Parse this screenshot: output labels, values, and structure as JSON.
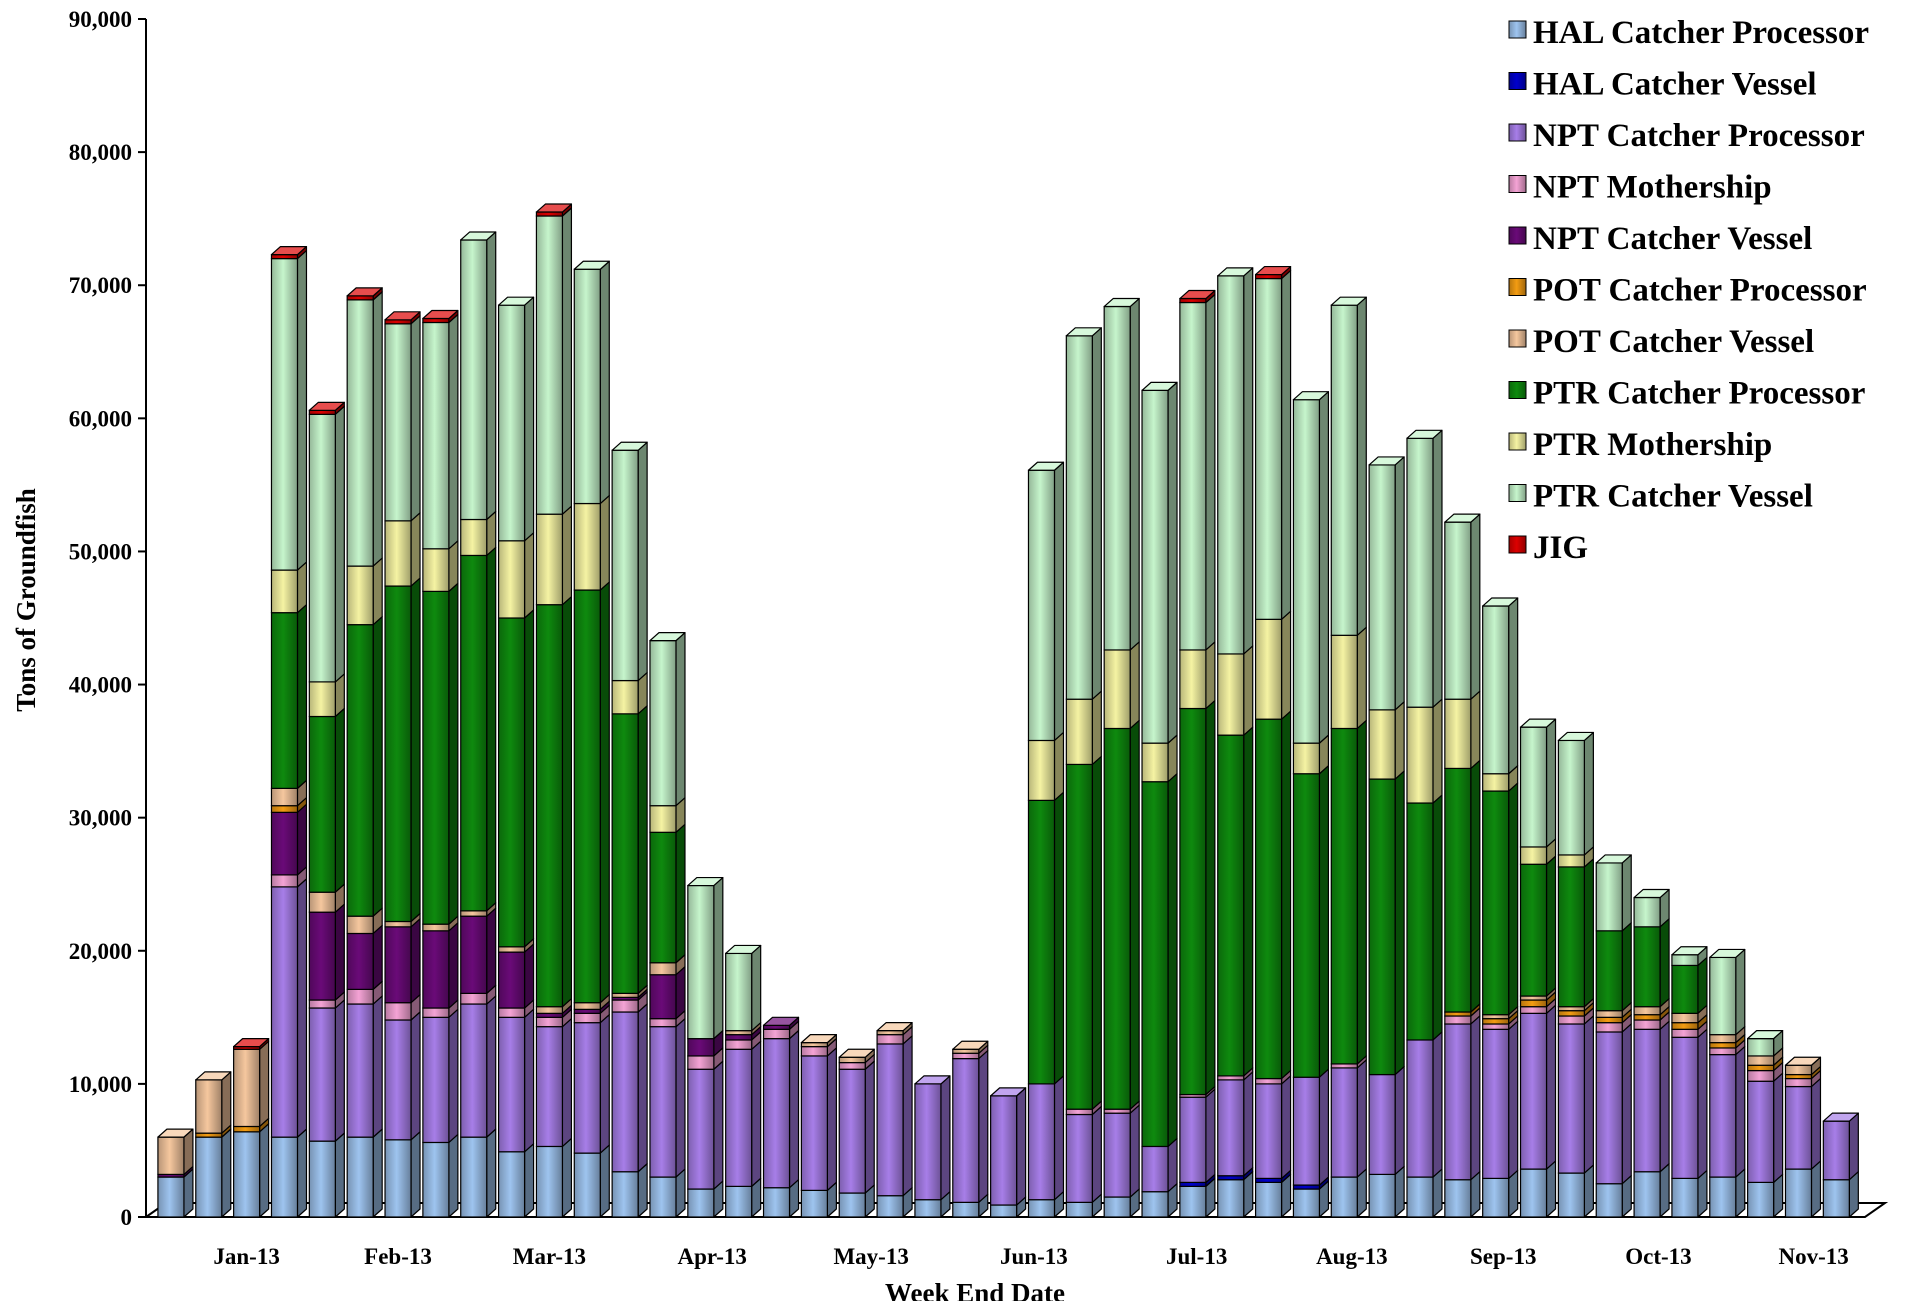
{
  "chart_data": {
    "type": "bar",
    "stacked": true,
    "title": "",
    "xlabel": "Week End Date",
    "ylabel": "Tons of Groundfish",
    "ylim": [
      0,
      90000
    ],
    "yticks": [
      0,
      10000,
      20000,
      30000,
      40000,
      50000,
      60000,
      70000,
      80000,
      90000
    ],
    "ytick_labels": [
      "0",
      "10,000",
      "20,000",
      "30,000",
      "40,000",
      "50,000",
      "60,000",
      "70,000",
      "80,000",
      "90,000"
    ],
    "grid": false,
    "legend_position": "top-right",
    "month_labels": [
      {
        "label": "Jan-13",
        "center": 2
      },
      {
        "label": "Feb-13",
        "center": 6
      },
      {
        "label": "Mar-13",
        "center": 10
      },
      {
        "label": "Apr-13",
        "center": 14.3
      },
      {
        "label": "May-13",
        "center": 18.5
      },
      {
        "label": "Jun-13",
        "center": 22.8
      },
      {
        "label": "Jul-13",
        "center": 27.1
      },
      {
        "label": "Aug-13",
        "center": 31.2
      },
      {
        "label": "Sep-13",
        "center": 35.2
      },
      {
        "label": "Oct-13",
        "center": 39.3
      },
      {
        "label": "Nov-13",
        "center": 43.4
      }
    ],
    "series": [
      {
        "name": "HAL Catcher Processor",
        "color": "#9ec4ef",
        "values": [
          3000,
          6000,
          6400,
          6000,
          5700,
          6000,
          5800,
          5600,
          6000,
          4900,
          5300,
          4800,
          3400,
          3000,
          2100,
          2300,
          2200,
          2000,
          1800,
          1600,
          1300,
          1100,
          900,
          1300,
          1100,
          1500,
          1900,
          2300,
          2800,
          2600,
          2100,
          3000,
          3200,
          3000,
          2800,
          2900,
          3600,
          3300,
          2500,
          3400,
          2900,
          3000,
          2600,
          3600,
          2800
        ]
      },
      {
        "name": "HAL Catcher Vessel",
        "color": "#0000cc",
        "values": [
          0,
          0,
          0,
          0,
          0,
          0,
          0,
          0,
          0,
          0,
          0,
          0,
          0,
          0,
          0,
          0,
          0,
          0,
          0,
          0,
          0,
          0,
          0,
          0,
          0,
          0,
          0,
          300,
          300,
          300,
          300,
          0,
          0,
          0,
          0,
          0,
          0,
          0,
          0,
          0,
          0,
          0,
          0,
          0,
          0
        ]
      },
      {
        "name": "NPT Catcher Processor",
        "color": "#a77ee8",
        "values": [
          0,
          0,
          0,
          18800,
          10000,
          10000,
          9000,
          9400,
          10000,
          10100,
          9000,
          9800,
          12000,
          11300,
          9000,
          10300,
          11200,
          10100,
          9300,
          11400,
          8700,
          10800,
          8200,
          8700,
          6600,
          6300,
          3400,
          6400,
          7200,
          7100,
          8100,
          8200,
          7500,
          10300,
          11700,
          11200,
          11700,
          11200,
          11400,
          10700,
          10600,
          9200,
          7600,
          6200,
          4400
        ]
      },
      {
        "name": "NPT Mothership",
        "color": "#f4a3d5",
        "values": [
          0,
          0,
          0,
          900,
          600,
          1100,
          1300,
          700,
          800,
          700,
          700,
          700,
          900,
          600,
          1000,
          700,
          700,
          700,
          500,
          700,
          0,
          400,
          0,
          0,
          400,
          300,
          0,
          200,
          300,
          400,
          0,
          300,
          0,
          0,
          600,
          400,
          500,
          600,
          700,
          700,
          600,
          500,
          800,
          600,
          0
        ]
      },
      {
        "name": "NPT Catcher Vessel",
        "color": "#6a0a78",
        "values": [
          200,
          0,
          0,
          4700,
          6600,
          4200,
          5700,
          5800,
          5800,
          4200,
          300,
          300,
          200,
          3300,
          1300,
          400,
          300,
          0,
          0,
          0,
          0,
          0,
          0,
          0,
          0,
          0,
          0,
          0,
          0,
          0,
          0,
          0,
          0,
          0,
          0,
          0,
          0,
          0,
          0,
          0,
          0,
          0,
          0,
          0,
          0
        ]
      },
      {
        "name": "POT Catcher Processor",
        "color": "#f39c12",
        "values": [
          0,
          300,
          400,
          500,
          0,
          0,
          0,
          0,
          0,
          0,
          0,
          0,
          0,
          0,
          0,
          0,
          0,
          0,
          0,
          0,
          0,
          0,
          0,
          0,
          0,
          0,
          0,
          0,
          0,
          0,
          0,
          0,
          0,
          0,
          300,
          400,
          500,
          400,
          400,
          400,
          500,
          400,
          400,
          300,
          0
        ]
      },
      {
        "name": "POT Catcher Vessel",
        "color": "#f5c79e",
        "values": [
          2800,
          4000,
          5800,
          1300,
          1500,
          1300,
          400,
          500,
          400,
          400,
          500,
          500,
          300,
          900,
          0,
          300,
          0,
          300,
          400,
          300,
          0,
          300,
          0,
          0,
          0,
          0,
          0,
          0,
          0,
          0,
          0,
          0,
          0,
          0,
          0,
          300,
          300,
          300,
          500,
          600,
          700,
          600,
          700,
          700,
          0
        ]
      },
      {
        "name": "PTR Catcher Processor",
        "color": "#0e8a0e",
        "values": [
          0,
          0,
          0,
          13200,
          13200,
          21900,
          25200,
          25000,
          26700,
          24700,
          30200,
          31000,
          21000,
          9800,
          0,
          0,
          0,
          0,
          0,
          0,
          0,
          0,
          0,
          21300,
          25900,
          28600,
          27400,
          29000,
          25600,
          27000,
          22800,
          25200,
          22200,
          17800,
          18300,
          16800,
          9900,
          10500,
          6000,
          6000,
          3600,
          0,
          0,
          0,
          0
        ]
      },
      {
        "name": "PTR Mothership",
        "color": "#f5f3a3",
        "values": [
          0,
          0,
          0,
          3200,
          2600,
          4400,
          4900,
          3200,
          2700,
          5800,
          6800,
          6500,
          2500,
          2000,
          0,
          0,
          0,
          0,
          0,
          0,
          0,
          0,
          0,
          4500,
          4900,
          5900,
          2900,
          4400,
          6100,
          7500,
          2300,
          7000,
          5200,
          7200,
          5200,
          1300,
          1300,
          900,
          0,
          0,
          0,
          0,
          0,
          0,
          0
        ]
      },
      {
        "name": "PTR Catcher Vessel",
        "color": "#c6f5cc",
        "values": [
          0,
          0,
          0,
          23400,
          20100,
          20000,
          14800,
          17000,
          21000,
          17700,
          22400,
          17600,
          17300,
          12400,
          11500,
          5800,
          0,
          0,
          0,
          0,
          0,
          0,
          0,
          20300,
          27300,
          25800,
          26500,
          26100,
          28400,
          25600,
          25800,
          24800,
          18400,
          20200,
          13300,
          12600,
          9000,
          8600,
          5100,
          2200,
          800,
          5800,
          1300,
          0,
          0
        ]
      },
      {
        "name": "JIG",
        "color": "#dd0000",
        "values": [
          0,
          0,
          200,
          300,
          300,
          300,
          300,
          300,
          0,
          0,
          300,
          0,
          0,
          0,
          0,
          0,
          0,
          0,
          0,
          0,
          0,
          0,
          0,
          0,
          0,
          0,
          0,
          300,
          0,
          300,
          0,
          0,
          0,
          0,
          0,
          0,
          0,
          0,
          0,
          0,
          0,
          0,
          0,
          0,
          0
        ]
      }
    ]
  }
}
